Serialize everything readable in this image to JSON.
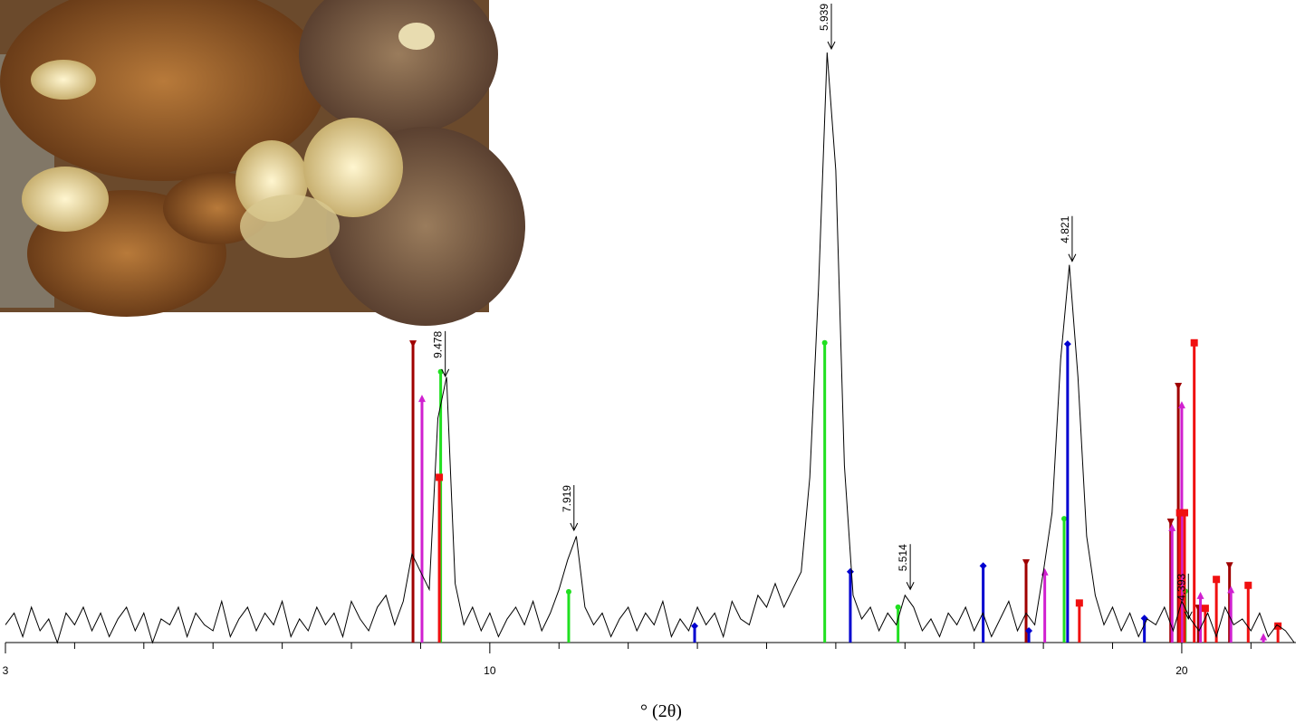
{
  "chart_data": {
    "type": "line",
    "x_label": "° (2θ)",
    "xlim": [
      3,
      21.65
    ],
    "xticks": [
      3,
      10,
      20
    ],
    "xminorticks": [
      4,
      5,
      6,
      7,
      8,
      9,
      11,
      12,
      13,
      14,
      15,
      16,
      17,
      18,
      19,
      21
    ],
    "ylim": [
      0,
      100
    ],
    "color": "#000000",
    "x": [
      3,
      3.125,
      3.25,
      3.375,
      3.5,
      3.625,
      3.75,
      3.875,
      4,
      4.125,
      4.25,
      4.375,
      4.5,
      4.625,
      4.75,
      4.875,
      5,
      5.125,
      5.25,
      5.375,
      5.5,
      5.625,
      5.75,
      5.875,
      6,
      6.125,
      6.25,
      6.375,
      6.5,
      6.625,
      6.75,
      6.875,
      7,
      7.125,
      7.25,
      7.375,
      7.5,
      7.625,
      7.75,
      7.875,
      8,
      8.125,
      8.25,
      8.375,
      8.5,
      8.625,
      8.75,
      8.875,
      9,
      9.125,
      9.25,
      9.375,
      9.5,
      9.625,
      9.75,
      9.875,
      10,
      10.125,
      10.25,
      10.375,
      10.5,
      10.625,
      10.75,
      10.875,
      11,
      11.125,
      11.25,
      11.375,
      11.5,
      11.625,
      11.75,
      11.875,
      12,
      12.125,
      12.25,
      12.375,
      12.5,
      12.625,
      12.75,
      12.875,
      13,
      13.125,
      13.25,
      13.375,
      13.5,
      13.625,
      13.75,
      13.875,
      14,
      14.125,
      14.25,
      14.375,
      14.5,
      14.625,
      14.75,
      14.875,
      15,
      15.125,
      15.25,
      15.375,
      15.5,
      15.625,
      15.75,
      15.875,
      16,
      16.125,
      16.25,
      16.375,
      16.5,
      16.625,
      16.75,
      16.875,
      17,
      17.125,
      17.25,
      17.375,
      17.5,
      17.625,
      17.75,
      17.875,
      18,
      18.125,
      18.25,
      18.375,
      18.5,
      18.625,
      18.75,
      18.875,
      19,
      19.125,
      19.25,
      19.375,
      19.5,
      19.625,
      19.75,
      19.875,
      20,
      20.125,
      20.25,
      20.375,
      20.5,
      20.625,
      20.75,
      20.875,
      21,
      21.125,
      21.25,
      21.375,
      21.5,
      21.625
    ],
    "values": [
      3,
      5,
      1,
      6,
      2,
      4,
      0,
      5,
      3,
      6,
      2,
      5,
      1,
      4,
      6,
      2,
      5,
      0,
      4,
      3,
      6,
      1,
      5,
      3,
      2,
      7,
      1,
      4,
      6,
      2,
      5,
      3,
      7,
      1,
      4,
      2,
      6,
      3,
      5,
      1,
      7,
      4,
      2,
      6,
      8,
      3,
      7,
      15,
      12,
      9,
      38,
      45,
      10,
      3,
      6,
      2,
      5,
      1,
      4,
      6,
      3,
      7,
      2,
      5,
      9,
      14,
      18,
      6,
      3,
      5,
      1,
      4,
      6,
      2,
      5,
      3,
      7,
      1,
      4,
      2,
      6,
      3,
      5,
      1,
      7,
      4,
      3,
      8,
      6,
      10,
      6,
      9,
      12,
      28,
      60,
      100,
      80,
      30,
      8,
      4,
      6,
      2,
      5,
      3,
      8,
      6,
      2,
      4,
      1,
      5,
      3,
      6,
      2,
      5,
      1,
      4,
      7,
      2,
      5,
      3,
      12,
      22,
      48,
      64,
      45,
      18,
      8,
      3,
      6,
      2,
      5,
      1,
      4,
      3,
      6,
      2,
      7,
      4,
      2,
      5,
      1,
      6,
      3,
      4,
      2,
      5,
      1,
      3,
      2,
      0
    ],
    "annotations": [
      {
        "x": 9.33,
        "y": 44.5,
        "text": "9.478"
      },
      {
        "x": 11.19,
        "y": 18.4,
        "text": "7.919"
      },
      {
        "x": 14.91,
        "y": 100,
        "text": "5.939"
      },
      {
        "x": 16.05,
        "y": 8.4,
        "text": "5.514"
      },
      {
        "x": 18.39,
        "y": 64,
        "text": "4.821"
      },
      {
        "x": 20.07,
        "y": 3.4,
        "text": "4.393"
      }
    ],
    "sticks": [
      {
        "color": "#a00000",
        "marker": "triangle-down",
        "x": [
          8.89,
          17.75,
          19.84,
          19.95,
          20.24,
          20.69
        ],
        "values": [
          50.6,
          13.5,
          20.4,
          43.4,
          5.8,
          13
        ]
      },
      {
        "color": "#d020d0",
        "marker": "triangle-up",
        "x": [
          9.02,
          18.02,
          19.86,
          20.0,
          20.27,
          20.71,
          21.18
        ],
        "values": [
          41.4,
          12,
          19.5,
          40.3,
          8,
          9,
          1
        ]
      },
      {
        "color": "#20e020",
        "marker": "circle",
        "x": [
          9.29,
          11.14,
          14.84,
          15.9,
          18.3,
          20.05
        ],
        "values": [
          45.9,
          8.6,
          50.8,
          6,
          21,
          8.7
        ]
      },
      {
        "color": "#0000d0",
        "marker": "diamond",
        "x": [
          12.96,
          15.21,
          17.13,
          17.79,
          18.35,
          19.46
        ],
        "values": [
          2.8,
          12,
          13,
          2,
          50.6,
          4.1
        ]
      },
      {
        "color": "#f01010",
        "marker": "square",
        "x": [
          9.27,
          18.52,
          19.97,
          20.04,
          20.18,
          20.34,
          20.5,
          20.96,
          21.39
        ],
        "values": [
          28,
          6.7,
          22,
          22,
          50.8,
          5.8,
          10.7,
          9.7,
          2.8
        ]
      }
    ]
  }
}
